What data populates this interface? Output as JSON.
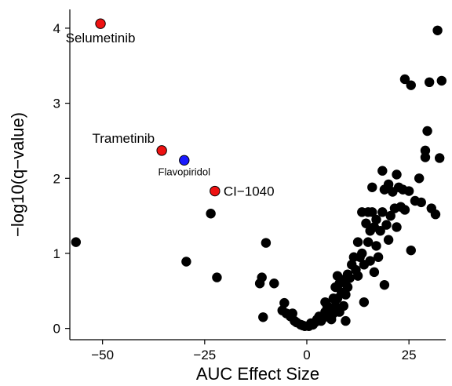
{
  "chart_data": {
    "type": "scatter",
    "xlabel": "AUC Effect Size",
    "ylabel": "−log10(q−value)",
    "xlim": [
      -58,
      34
    ],
    "ylim": [
      -0.15,
      4.25
    ],
    "xticks": [
      -50,
      -25,
      0,
      25
    ],
    "xtick_labels": [
      "−50",
      "−25",
      "0",
      "25"
    ],
    "yticks": [
      0,
      1,
      2,
      3,
      4
    ],
    "ytick_labels": [
      "0",
      "1",
      "2",
      "3",
      "4"
    ],
    "grid": false,
    "legend": "none",
    "colors": {
      "default": "#000000",
      "highlight_red": "#ee1111",
      "highlight_blue": "#1a1aff"
    },
    "highlighted": [
      {
        "label": "Selumetinib",
        "x": -50.5,
        "y": 4.06,
        "color": "highlight_red",
        "label_pos": "below",
        "size": "large"
      },
      {
        "label": "Trametinib",
        "x": -35.5,
        "y": 2.37,
        "color": "highlight_red",
        "label_pos": "above-left",
        "size": "large"
      },
      {
        "label": "Flavopiridol",
        "x": -30,
        "y": 2.24,
        "color": "highlight_blue",
        "label_pos": "below",
        "size": "small"
      },
      {
        "label": "CI−1040",
        "x": -22.5,
        "y": 1.83,
        "color": "highlight_red",
        "label_pos": "right",
        "size": "large"
      }
    ],
    "points": [
      [
        -56.5,
        1.15
      ],
      [
        -23.5,
        1.53
      ],
      [
        -29.5,
        0.89
      ],
      [
        -22,
        0.68
      ],
      [
        -10,
        1.14
      ],
      [
        -11,
        0.68
      ],
      [
        -11.5,
        0.6
      ],
      [
        -8,
        0.6
      ],
      [
        -10.7,
        0.15
      ],
      [
        -5.5,
        0.34
      ],
      [
        -6,
        0.24
      ],
      [
        -5,
        0.2
      ],
      [
        -4,
        0.16
      ],
      [
        -3.5,
        0.2
      ],
      [
        -3,
        0.1
      ],
      [
        -2.5,
        0.08
      ],
      [
        -1.5,
        0.05
      ],
      [
        -1,
        0.04
      ],
      [
        -0.5,
        0.03
      ],
      [
        0.5,
        0.03
      ],
      [
        1,
        0.07
      ],
      [
        1.5,
        0.05
      ],
      [
        2,
        0.08
      ],
      [
        2.5,
        0.12
      ],
      [
        3,
        0.16
      ],
      [
        3.5,
        0.1
      ],
      [
        4,
        0.14
      ],
      [
        4.5,
        0.35
      ],
      [
        4.5,
        0.22
      ],
      [
        5,
        0.3
      ],
      [
        5.5,
        0.15
      ],
      [
        6,
        0.25
      ],
      [
        6,
        0.12
      ],
      [
        6.5,
        0.4
      ],
      [
        6.5,
        0.2
      ],
      [
        7,
        0.55
      ],
      [
        7,
        0.3
      ],
      [
        7.5,
        0.7
      ],
      [
        7.5,
        0.4
      ],
      [
        8,
        0.6
      ],
      [
        8,
        0.22
      ],
      [
        8.5,
        0.48
      ],
      [
        9,
        0.65
      ],
      [
        9,
        0.3
      ],
      [
        9.5,
        0.1
      ],
      [
        9.5,
        0.45
      ],
      [
        10,
        0.72
      ],
      [
        10,
        0.55
      ],
      [
        10.5,
        0.67
      ],
      [
        11,
        0.85
      ],
      [
        11.5,
        0.95
      ],
      [
        12,
        0.78
      ],
      [
        12.5,
        1.15
      ],
      [
        12.5,
        0.7
      ],
      [
        13,
        0.95
      ],
      [
        13.5,
        1.55
      ],
      [
        13.5,
        1.0
      ],
      [
        14,
        0.85
      ],
      [
        14,
        0.35
      ],
      [
        14.5,
        1.4
      ],
      [
        15,
        1.55
      ],
      [
        15,
        1.15
      ],
      [
        15.5,
        1.3
      ],
      [
        15.5,
        0.9
      ],
      [
        16,
        1.88
      ],
      [
        16,
        1.55
      ],
      [
        16.5,
        1.35
      ],
      [
        16.5,
        0.75
      ],
      [
        17,
        1.45
      ],
      [
        17,
        1.1
      ],
      [
        17.5,
        0.95
      ],
      [
        18,
        1.3
      ],
      [
        18.5,
        2.1
      ],
      [
        18.5,
        1.55
      ],
      [
        19,
        1.85
      ],
      [
        19,
        0.58
      ],
      [
        19.5,
        1.38
      ],
      [
        20,
        1.92
      ],
      [
        20,
        1.18
      ],
      [
        20.5,
        1.5
      ],
      [
        21,
        1.82
      ],
      [
        21.5,
        1.6
      ],
      [
        22,
        2.05
      ],
      [
        22,
        1.35
      ],
      [
        22.5,
        1.88
      ],
      [
        23,
        1.62
      ],
      [
        23.5,
        1.85
      ],
      [
        24,
        3.32
      ],
      [
        24,
        1.58
      ],
      [
        25,
        1.83
      ],
      [
        25.5,
        1.04
      ],
      [
        25.5,
        3.24
      ],
      [
        26.5,
        1.7
      ],
      [
        27.5,
        2.0
      ],
      [
        28,
        1.68
      ],
      [
        29,
        2.37
      ],
      [
        29,
        2.28
      ],
      [
        29.5,
        2.63
      ],
      [
        30,
        3.28
      ],
      [
        30.5,
        1.6
      ],
      [
        31.5,
        1.52
      ],
      [
        32,
        3.97
      ],
      [
        32.5,
        2.27
      ],
      [
        33,
        3.3
      ]
    ]
  }
}
